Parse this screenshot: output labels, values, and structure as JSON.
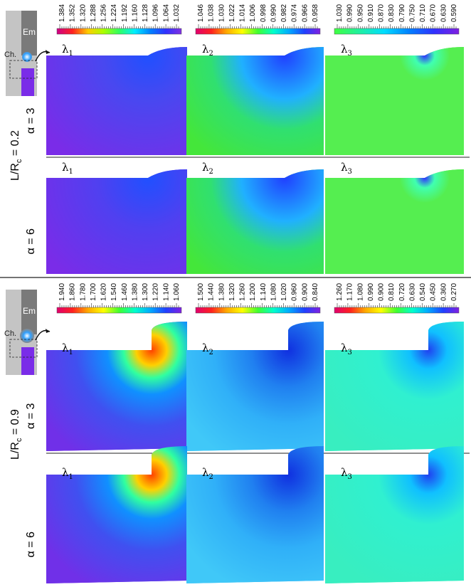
{
  "sections": [
    {
      "ratio": {
        "prefix": "L/R",
        "sub": "c",
        "suffix": " = 0.2"
      },
      "inset": {
        "em": "Em",
        "ch": "Ch."
      },
      "colorbars": [
        [
          "1.384",
          "1.352",
          "1.320",
          "1.288",
          "1.256",
          "1.224",
          "1.192",
          "1.160",
          "1.128",
          "1.096",
          "1.064",
          "1.032"
        ],
        [
          "1.046",
          "1.038",
          "1.030",
          "1.022",
          "1.014",
          "1.006",
          "0.998",
          "0.990",
          "0.982",
          "0.974",
          "0.966",
          "0.958"
        ],
        [
          "1.030",
          "0.990",
          "0.950",
          "0.910",
          "0.870",
          "0.830",
          "0.790",
          "0.750",
          "0.710",
          "0.670",
          "0.630",
          "0.590"
        ]
      ],
      "rows": [
        {
          "alpha": "α = 3",
          "panels": [
            {
              "symbol": "λ",
              "sub": "1"
            },
            {
              "symbol": "λ",
              "sub": "2"
            },
            {
              "symbol": "λ",
              "sub": "3"
            }
          ]
        },
        {
          "alpha": "α = 6",
          "panels": [
            {
              "symbol": "λ",
              "sub": "1"
            },
            {
              "symbol": "λ",
              "sub": "2"
            },
            {
              "symbol": "λ",
              "sub": "3"
            }
          ]
        }
      ]
    },
    {
      "ratio": {
        "prefix": "L/R",
        "sub": "c",
        "suffix": " = 0.9"
      },
      "inset": {
        "em": "Em",
        "ch": "Ch."
      },
      "colorbars": [
        [
          "1.940",
          "1.860",
          "1.780",
          "1.700",
          "1.620",
          "1.540",
          "1.460",
          "1.380",
          "1.300",
          "1.220",
          "1.140",
          "1.060"
        ],
        [
          "1.500",
          "1.440",
          "1.380",
          "1.320",
          "1.260",
          "1.200",
          "1.140",
          "1.080",
          "1.020",
          "0.960",
          "0.900",
          "0.840"
        ],
        [
          "1.260",
          "1.170",
          "1.080",
          "0.990",
          "0.900",
          "0.810",
          "0.720",
          "0.630",
          "0.540",
          "0.450",
          "0.360",
          "0.270"
        ]
      ],
      "rows": [
        {
          "alpha": "α = 3",
          "panels": [
            {
              "symbol": "λ",
              "sub": "1"
            },
            {
              "symbol": "λ",
              "sub": "2"
            },
            {
              "symbol": "λ",
              "sub": "3"
            }
          ]
        },
        {
          "alpha": "α = 6",
          "panels": [
            {
              "symbol": "λ",
              "sub": "1"
            },
            {
              "symbol": "λ",
              "sub": "2"
            },
            {
              "symbol": "λ",
              "sub": "3"
            }
          ]
        }
      ]
    }
  ]
}
